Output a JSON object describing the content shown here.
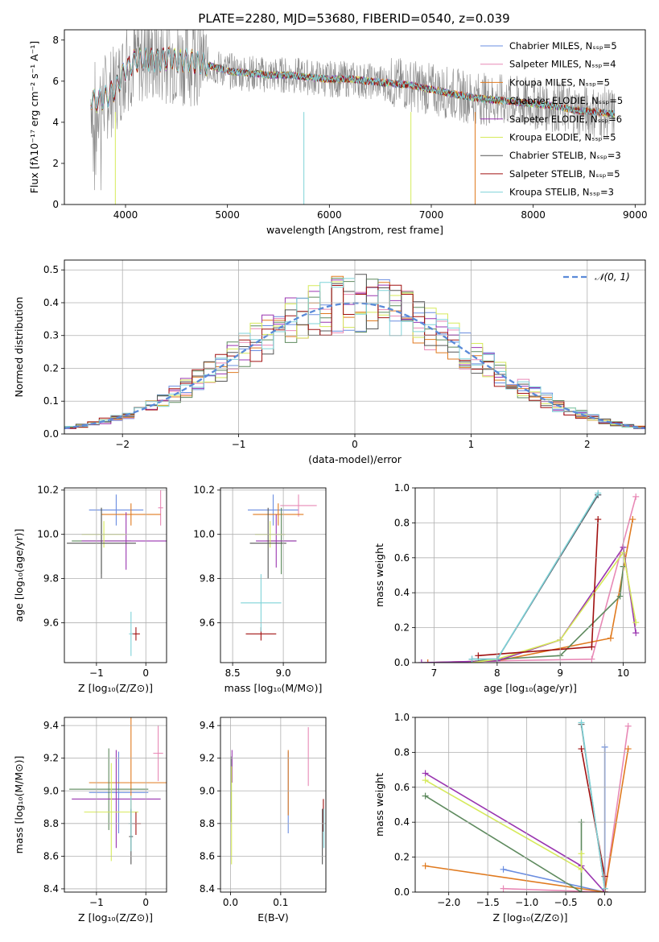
{
  "title": "PLATE=2280, MJD=53680, FIBERID=0540, z=0.039",
  "colors": {
    "series": [
      "#6a8de0",
      "#e889b6",
      "#e07a1f",
      "#5e8a5e",
      "#9a35b0",
      "#d6ea5a",
      "#555555",
      "#a01010",
      "#7fd3d8"
    ],
    "grid": "#b0b0b0",
    "normal": "#5a8ad8"
  },
  "chart_data": [
    {
      "id": "spectrum",
      "type": "line",
      "xlabel": "wavelength [Angstrom, rest frame]",
      "ylabel": "Flux [fλ10⁻¹⁷ erg cm⁻² s⁻¹ A⁻¹]",
      "xlim": [
        3400,
        9100
      ],
      "ylim": [
        0,
        8.5
      ],
      "xticks": [
        4000,
        5000,
        6000,
        7000,
        8000,
        9000
      ],
      "yticks": [
        0,
        2,
        4,
        6,
        8
      ],
      "legend_position": "top-right",
      "legend": [
        "Chabrier MILES, Nₛₛₚ=5",
        "Salpeter MILES, Nₛₛₚ=4",
        "Kroupa MILES, Nₛₛₚ=5",
        "Chabrier ELODIE, Nₛₛₚ=5",
        "Salpeter ELODIE, Nₛₛₚ=6",
        "Kroupa ELODIE, Nₛₛₚ=5",
        "Chabrier STELIB, Nₛₛₚ=3",
        "Salpeter STELIB, Nₛₛₚ=5",
        "Kroupa STELIB, Nₛₛₚ=3"
      ],
      "continuum": {
        "x": [
          3650,
          3700,
          3800,
          3900,
          3950,
          4000,
          4100,
          4200,
          4300,
          4400,
          4500,
          4600,
          4800,
          5000,
          5200,
          5400,
          5600,
          5800,
          6000,
          6200,
          6400,
          6600,
          6800,
          7000,
          7200,
          7400,
          7600,
          7800,
          8000,
          8200,
          8400,
          8600,
          8800
        ],
        "y": [
          5.2,
          5.0,
          5.2,
          5.6,
          6.1,
          6.6,
          7.0,
          7.1,
          7.0,
          7.1,
          7.0,
          7.0,
          6.8,
          6.5,
          6.4,
          6.3,
          6.3,
          6.2,
          6.1,
          6.1,
          6.0,
          5.9,
          5.8,
          5.6,
          5.4,
          5.2,
          5.1,
          5.0,
          4.9,
          4.8,
          4.6,
          4.5,
          4.4
        ]
      }
    },
    {
      "id": "residuals",
      "type": "histogram",
      "xlabel": "(data-model)/error",
      "ylabel": "Normed distribution",
      "xlim": [
        -2.5,
        2.5
      ],
      "ylim": [
        0,
        0.53
      ],
      "xticks": [
        -2,
        -1,
        0,
        1,
        2
      ],
      "yticks": [
        0.0,
        0.1,
        0.2,
        0.3,
        0.4,
        0.5
      ],
      "legend": [
        "𝒩(0, 1)"
      ],
      "legend_position": "top-right",
      "bin_width": 0.1
    },
    {
      "id": "age-vs-Z",
      "type": "scatter",
      "xlabel": "Z [log₁₀(Z/Z⊙)]",
      "ylabel": "age  [log₁₀(age/yr)]",
      "xlim": [
        -1.65,
        0.42
      ],
      "ylim": [
        9.42,
        10.21
      ],
      "xticks": [
        -1,
        0
      ],
      "yticks": [
        9.6,
        9.8,
        10.0,
        10.2
      ],
      "points": [
        {
          "x": -0.6,
          "y": 10.11,
          "xerr": 0.55,
          "yerr": 0.07,
          "c": 0
        },
        {
          "x": 0.3,
          "y": 10.12,
          "xerr": 0.05,
          "yerr": 0.08,
          "c": 1
        },
        {
          "x": -0.3,
          "y": 10.09,
          "xerr": 0.6,
          "yerr": 0.05,
          "c": 2
        },
        {
          "x": -0.9,
          "y": 9.97,
          "xerr": 0.6,
          "yerr": 0.15,
          "c": 3
        },
        {
          "x": -0.4,
          "y": 9.97,
          "xerr": 0.9,
          "yerr": 0.13,
          "c": 4
        },
        {
          "x": -0.85,
          "y": 10.0,
          "xerr": 0.45,
          "yerr": 0.06,
          "c": 5
        },
        {
          "x": -0.9,
          "y": 9.96,
          "xerr": 0.7,
          "yerr": 0.16,
          "c": 6
        },
        {
          "x": -0.2,
          "y": 9.55,
          "xerr": 0.08,
          "yerr": 0.03,
          "c": 7
        },
        {
          "x": -0.3,
          "y": 9.55,
          "xerr": 0.04,
          "yerr": 0.1,
          "c": 8
        }
      ]
    },
    {
      "id": "age-vs-mass",
      "type": "scatter",
      "xlabel": "mass [log₁₀(M/M⊙)]",
      "ylabel": "",
      "xlim": [
        8.38,
        9.42
      ],
      "ylim": [
        9.42,
        10.21
      ],
      "xticks": [
        8.5,
        9.0
      ],
      "yticks": [
        9.6,
        9.8,
        10.0,
        10.2
      ],
      "points": [
        {
          "x": 8.9,
          "y": 10.11,
          "xerr": 0.25,
          "yerr": 0.07,
          "c": 0
        },
        {
          "x": 9.15,
          "y": 10.13,
          "xerr": 0.18,
          "yerr": 0.05,
          "c": 1
        },
        {
          "x": 8.95,
          "y": 10.09,
          "xerr": 0.25,
          "yerr": 0.05,
          "c": 2
        },
        {
          "x": 8.98,
          "y": 9.97,
          "xerr": 0.15,
          "yerr": 0.15,
          "c": 3
        },
        {
          "x": 8.93,
          "y": 9.97,
          "xerr": 0.2,
          "yerr": 0.12,
          "c": 4
        },
        {
          "x": 8.87,
          "y": 10.0,
          "xerr": 0.15,
          "yerr": 0.06,
          "c": 5
        },
        {
          "x": 8.85,
          "y": 9.96,
          "xerr": 0.18,
          "yerr": 0.16,
          "c": 6
        },
        {
          "x": 8.78,
          "y": 9.55,
          "xerr": 0.15,
          "yerr": 0.03,
          "c": 7
        },
        {
          "x": 8.78,
          "y": 9.69,
          "xerr": 0.2,
          "yerr": 0.13,
          "c": 8
        }
      ]
    },
    {
      "id": "mass-weight-vs-age",
      "type": "line",
      "xlabel": "age  [log₁₀(age/yr)]",
      "ylabel": "mass weight",
      "xlim": [
        6.7,
        10.35
      ],
      "ylim": [
        0,
        1.0
      ],
      "xticks": [
        7,
        8,
        9,
        10
      ],
      "yticks": [
        0.0,
        0.2,
        0.4,
        0.6,
        0.8,
        1.0
      ]
    },
    {
      "id": "mass-vs-Z",
      "type": "scatter",
      "xlabel": "Z [log₁₀(Z/Z⊙)]",
      "ylabel": "mass [log₁₀(M/M⊙)]",
      "xlim": [
        -1.65,
        0.42
      ],
      "ylim": [
        8.38,
        9.45
      ],
      "xticks": [
        -1,
        0
      ],
      "yticks": [
        8.4,
        8.6,
        8.8,
        9.0,
        9.2,
        9.4
      ],
      "points": [
        {
          "x": -0.55,
          "y": 8.99,
          "xerr": 0.6,
          "yerr": 0.25,
          "c": 0
        },
        {
          "x": 0.25,
          "y": 9.23,
          "xerr": 0.1,
          "yerr": 0.17,
          "c": 1
        },
        {
          "x": -0.3,
          "y": 9.05,
          "xerr": 0.85,
          "yerr": 0.42,
          "c": 2
        },
        {
          "x": -0.75,
          "y": 9.01,
          "xerr": 0.8,
          "yerr": 0.25,
          "c": 3
        },
        {
          "x": -0.6,
          "y": 8.95,
          "xerr": 0.9,
          "yerr": 0.3,
          "c": 4
        },
        {
          "x": -0.7,
          "y": 8.87,
          "xerr": 0.55,
          "yerr": 0.3,
          "c": 5
        },
        {
          "x": -0.3,
          "y": 8.72,
          "xerr": 0.04,
          "yerr": 0.17,
          "c": 6
        },
        {
          "x": -0.2,
          "y": 8.8,
          "xerr": 0.1,
          "yerr": 0.07,
          "c": 7
        },
        {
          "x": -0.3,
          "y": 8.8,
          "xerr": 0.05,
          "yerr": 0.17,
          "c": 8
        }
      ]
    },
    {
      "id": "mass-vs-ebv",
      "type": "scatter",
      "xlabel": "E(B-V)",
      "ylabel": "",
      "xlim": [
        -0.02,
        0.19
      ],
      "ylim": [
        8.38,
        9.45
      ],
      "xticks": [
        0.0,
        0.1
      ],
      "yticks": [
        8.4,
        8.6,
        8.8,
        9.0,
        9.2,
        9.4
      ],
      "points": [
        {
          "x": 0.115,
          "y": 8.99,
          "yerr": 0.25,
          "c": 0
        },
        {
          "x": 0.155,
          "y": 9.21,
          "yerr": 0.18,
          "c": 1
        },
        {
          "x": 0.115,
          "y": 9.05,
          "yerr": 0.2,
          "c": 2
        },
        {
          "x": 0.001,
          "y": 9.01,
          "yerr": 0.2,
          "c": 3
        },
        {
          "x": 0.003,
          "y": 9.15,
          "yerr": 0.1,
          "c": 4
        },
        {
          "x": 0.002,
          "y": 8.85,
          "yerr": 0.3,
          "c": 5
        },
        {
          "x": 0.183,
          "y": 8.72,
          "yerr": 0.17,
          "c": 6
        },
        {
          "x": 0.185,
          "y": 8.85,
          "yerr": 0.1,
          "c": 7
        },
        {
          "x": 0.186,
          "y": 8.77,
          "yerr": 0.12,
          "c": 8
        }
      ]
    },
    {
      "id": "mass-weight-vs-Z",
      "type": "line",
      "xlabel": "Z [log₁₀(Z/Z⊙)]",
      "ylabel": "mass weight",
      "xlim": [
        -2.43,
        0.52
      ],
      "ylim": [
        0,
        1.0
      ],
      "xticks": [
        -2.0,
        -1.5,
        -1.0,
        -0.5,
        0.0
      ],
      "yticks": [
        0.0,
        0.2,
        0.4,
        0.6,
        0.8,
        1.0
      ]
    }
  ]
}
